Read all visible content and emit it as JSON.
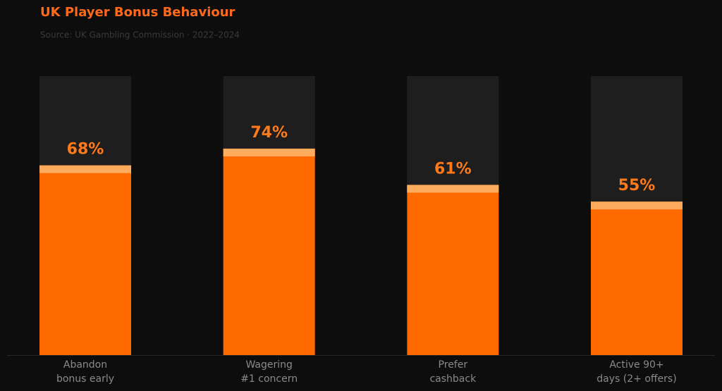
{
  "chart_data": {
    "type": "bar",
    "title": "UK Player Bonus Behaviour",
    "subtitle": "Source: UK Gambling Commission · 2022–2024",
    "categories": [
      "Abandon\nbonus early",
      "Wagering\n#1 concern",
      "Prefer\ncashback",
      "Active 90+\ndays (2+ offers)"
    ],
    "values": [
      68,
      74,
      61,
      55
    ],
    "value_labels": [
      "68%",
      "74%",
      "61%",
      "55%"
    ],
    "color": "#ff6a00",
    "ylim": [
      0,
      100
    ]
  }
}
